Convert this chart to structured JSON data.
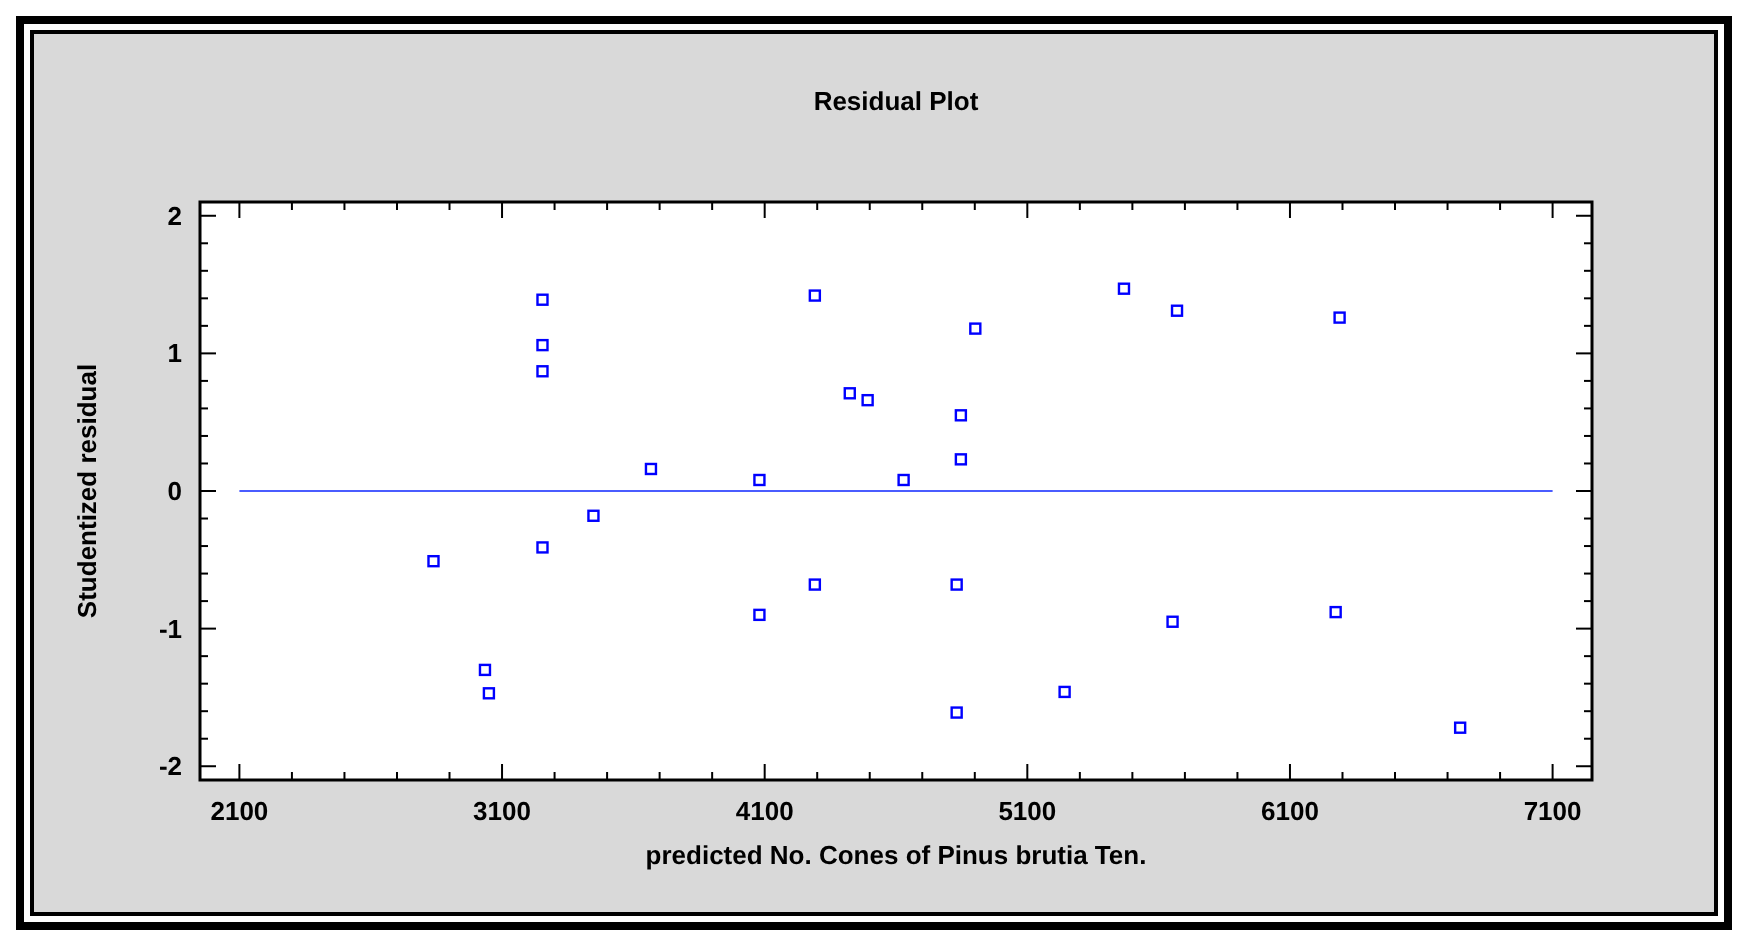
{
  "chart_data": {
    "type": "scatter",
    "title": "Residual Plot",
    "xlabel": "predicted No. Cones of Pinus brutia Ten.",
    "ylabel": "Studentized residual",
    "x": [
      2839,
      3035,
      3050,
      3254,
      3254,
      3254,
      3254,
      3448,
      3667,
      4080,
      4080,
      4291,
      4291,
      4424,
      4492,
      4629,
      4847,
      4847,
      4831,
      4831,
      4902,
      5242,
      5468,
      5670,
      5653,
      6289,
      6274,
      6748
    ],
    "series": [
      {
        "color": "#0000ff",
        "values": [
          -0.51,
          -1.3,
          -1.47,
          1.39,
          1.06,
          0.87,
          -0.41,
          -0.18,
          0.16,
          0.08,
          -0.9,
          1.42,
          -0.68,
          0.71,
          0.66,
          0.08,
          0.55,
          0.23,
          -0.68,
          -1.61,
          1.18,
          -1.46,
          1.47,
          1.31,
          -0.95,
          1.26,
          -0.88,
          -1.72
        ]
      }
    ],
    "xlim": [
      1950,
      7250
    ],
    "ylim": [
      -2.1,
      2.1
    ],
    "xticks": [
      2100,
      {
        "value": 2300,
        "label": null
      },
      {
        "value": 2500,
        "label": null
      },
      {
        "value": 2700,
        "label": null
      },
      {
        "value": 2900,
        "label": null
      },
      3100,
      {
        "value": 3300,
        "label": null
      },
      {
        "value": 3500,
        "label": null
      },
      {
        "value": 3700,
        "label": null
      },
      {
        "value": 3900,
        "label": null
      },
      4100,
      {
        "value": 4300,
        "label": null
      },
      {
        "value": 4500,
        "label": null
      },
      {
        "value": 4700,
        "label": null
      },
      {
        "value": 4900,
        "label": null
      },
      5100,
      {
        "value": 5300,
        "label": null
      },
      {
        "value": 5500,
        "label": null
      },
      {
        "value": 5700,
        "label": null
      },
      {
        "value": 5900,
        "label": null
      },
      6100,
      {
        "value": 6300,
        "label": null
      },
      {
        "value": 6500,
        "label": null
      },
      {
        "value": 6700,
        "label": null
      },
      {
        "value": 6900,
        "label": null
      },
      7100
    ],
    "yticks": [
      -2,
      {
        "value": -1.8,
        "label": null
      },
      {
        "value": -1.6,
        "label": null
      },
      {
        "value": -1.4,
        "label": null
      },
      {
        "value": -1.2,
        "label": null
      },
      -1,
      {
        "value": -0.8,
        "label": null
      },
      {
        "value": -0.6,
        "label": null
      },
      {
        "value": -0.4,
        "label": null
      },
      {
        "value": -0.2,
        "label": null
      },
      0,
      {
        "value": 0.2,
        "label": null
      },
      {
        "value": 0.4,
        "label": null
      },
      {
        "value": 0.6,
        "label": null
      },
      {
        "value": 0.8,
        "label": null
      },
      1,
      {
        "value": 1.2,
        "label": null
      },
      {
        "value": 1.4,
        "label": null
      },
      {
        "value": 1.6,
        "label": null
      },
      {
        "value": 1.8,
        "label": null
      },
      2
    ],
    "ref_lines": [
      {
        "axis": "y",
        "value": 0,
        "color": "#4a5cff"
      }
    ],
    "marker": "square",
    "grid": false
  }
}
